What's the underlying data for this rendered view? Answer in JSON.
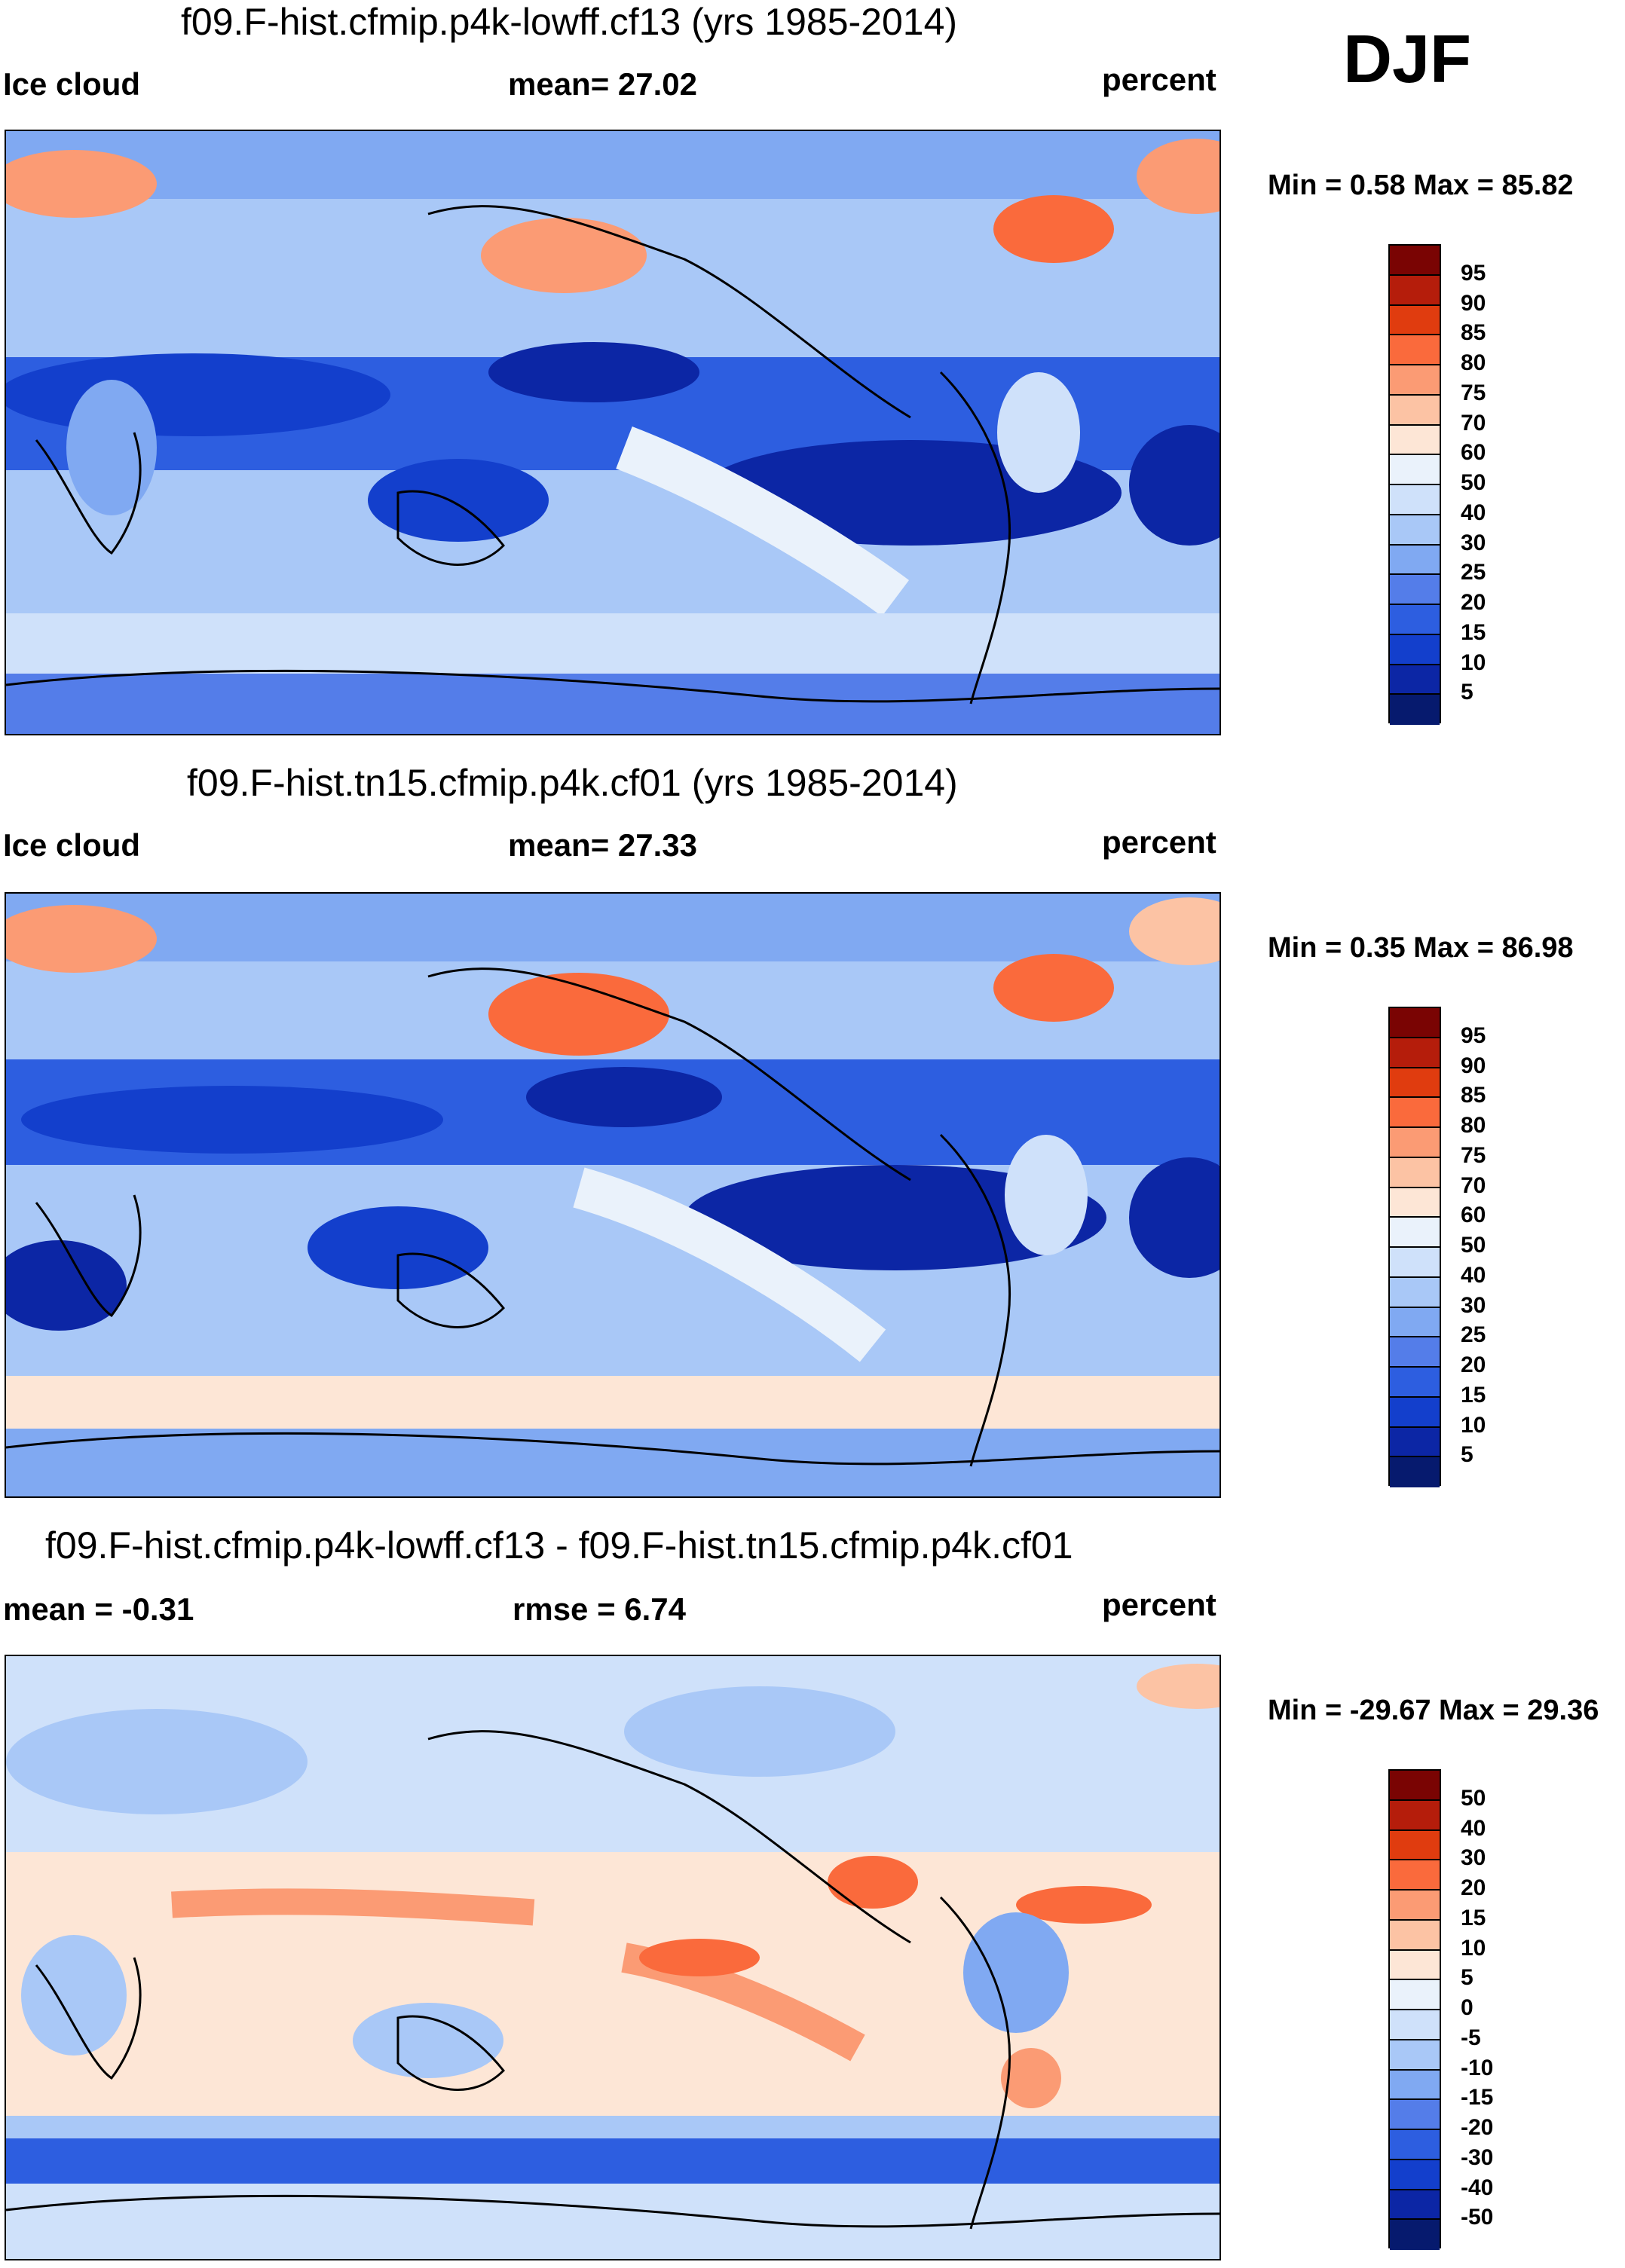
{
  "season": "DJF",
  "panels": [
    {
      "title": "f09.F-hist.cfmip.p4k-lowff.cf13 (yrs 1985-2014)",
      "left_label": "Ice cloud",
      "center_label": "mean=  27.02",
      "units": "percent",
      "minmax": "Min =   0.58 Max =  85.82",
      "colorbar_labels": [
        "95",
        "90",
        "85",
        "80",
        "75",
        "70",
        "60",
        "50",
        "40",
        "30",
        "25",
        "20",
        "15",
        "10",
        "5"
      ],
      "colorbar_colors": [
        "#7a0403",
        "#b51d0b",
        "#e03c0f",
        "#fa6a3c",
        "#fb9b74",
        "#fcc3a4",
        "#fde6d6",
        "#eaf2fb",
        "#cfe1fa",
        "#a9c8f7",
        "#80a9f2",
        "#547de9",
        "#2d5ee0",
        "#133fcc",
        "#0c26a5",
        "#061a6e"
      ]
    },
    {
      "title": "f09.F-hist.tn15.cfmip.p4k.cf01 (yrs 1985-2014)",
      "left_label": "Ice cloud",
      "center_label": "mean=  27.33",
      "units": "percent",
      "minmax": "Min =   0.35 Max =  86.98",
      "colorbar_labels": [
        "95",
        "90",
        "85",
        "80",
        "75",
        "70",
        "60",
        "50",
        "40",
        "30",
        "25",
        "20",
        "15",
        "10",
        "5"
      ],
      "colorbar_colors": [
        "#7a0403",
        "#b51d0b",
        "#e03c0f",
        "#fa6a3c",
        "#fb9b74",
        "#fcc3a4",
        "#fde6d6",
        "#eaf2fb",
        "#cfe1fa",
        "#a9c8f7",
        "#80a9f2",
        "#547de9",
        "#2d5ee0",
        "#133fcc",
        "#0c26a5",
        "#061a6e"
      ]
    },
    {
      "title": "f09.F-hist.cfmip.p4k-lowff.cf13 - f09.F-hist.tn15.cfmip.p4k.cf01",
      "left_label": "mean =  -0.31",
      "center_label": "rmse =    6.74",
      "units": "percent",
      "minmax": "Min = -29.67 Max =  29.36",
      "colorbar_labels": [
        "50",
        "40",
        "30",
        "20",
        "15",
        "10",
        "5",
        "0",
        "-5",
        "-10",
        "-15",
        "-20",
        "-30",
        "-40",
        "-50"
      ],
      "colorbar_colors": [
        "#7a0403",
        "#b51d0b",
        "#e03c0f",
        "#fa6a3c",
        "#fb9b74",
        "#fcc3a4",
        "#fde6d6",
        "#eaf2fb",
        "#cfe1fa",
        "#a9c8f7",
        "#80a9f2",
        "#547de9",
        "#2d5ee0",
        "#133fcc",
        "#0c26a5",
        "#061a6e"
      ]
    }
  ]
}
